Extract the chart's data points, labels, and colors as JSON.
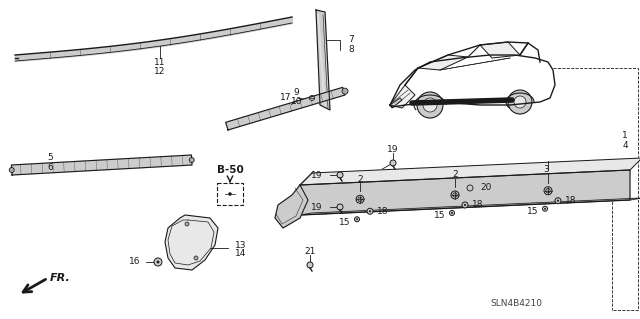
{
  "bg_color": "#ffffff",
  "diagram_code": "SLN4B4210",
  "dark": "#1a1a1a",
  "gray1": "#aaaaaa",
  "gray2": "#cccccc",
  "gray3": "#e8e8e8"
}
